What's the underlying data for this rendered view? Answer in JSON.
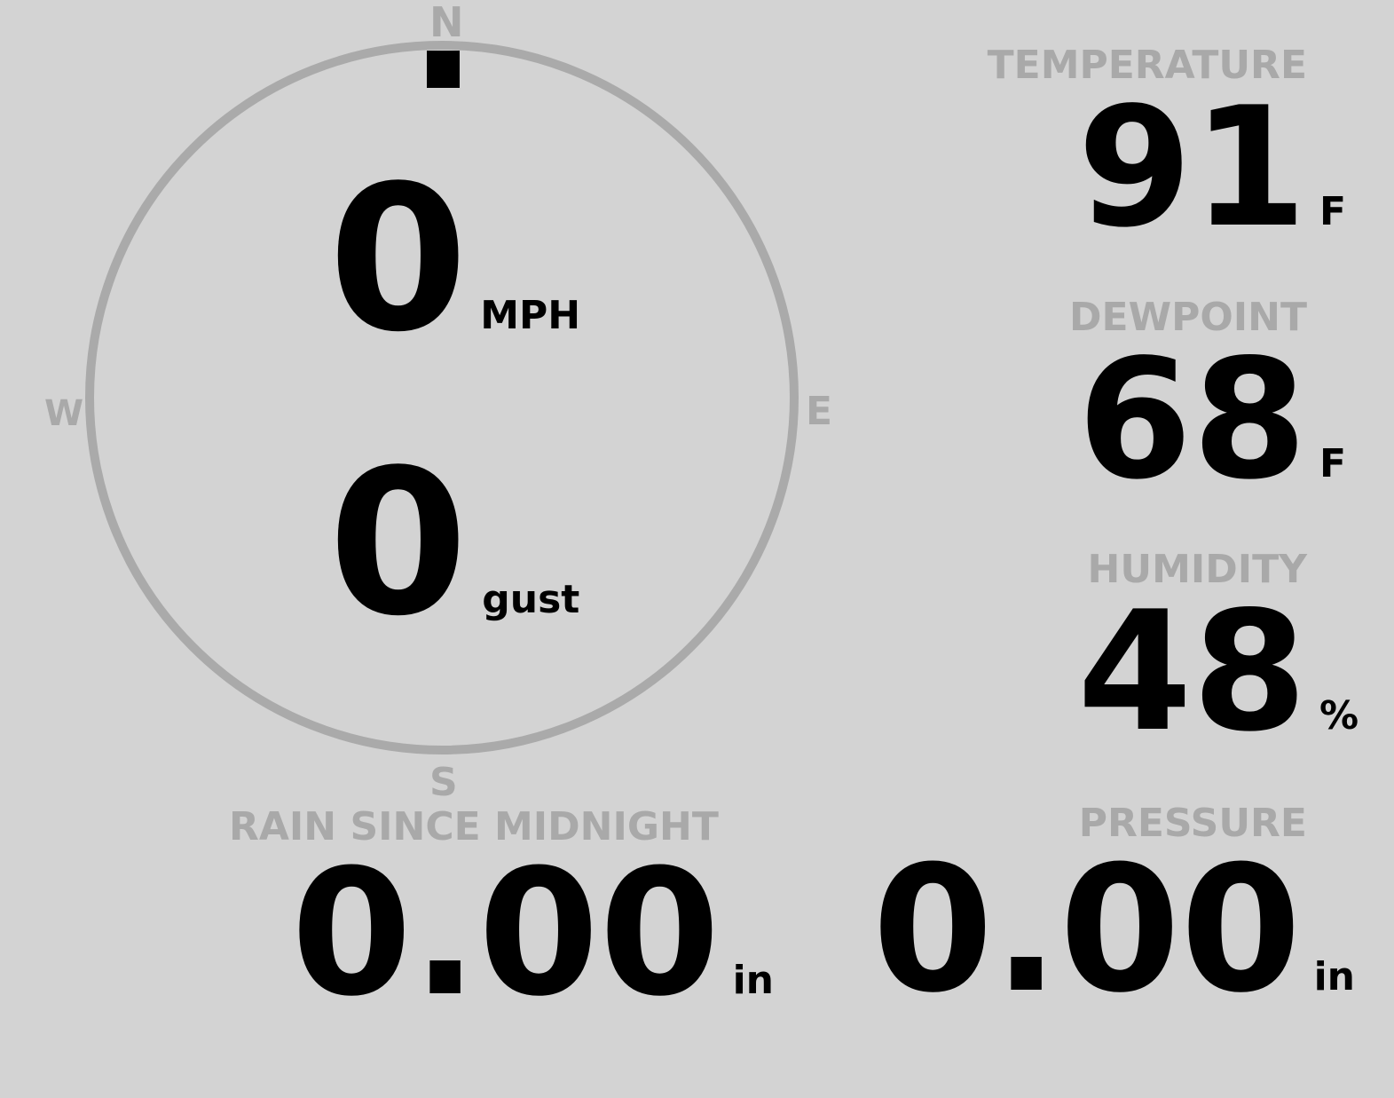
{
  "compass": {
    "north": "N",
    "east": "E",
    "south": "S",
    "west": "W",
    "wind_direction_deg": 0,
    "ring_color": "#aaaaaa",
    "pointer_color": "#000000"
  },
  "wind": {
    "speed": "0",
    "speed_unit": "MPH",
    "gust": "0",
    "gust_unit": "gust"
  },
  "temperature": {
    "label": "TEMPERATURE",
    "value": "91",
    "unit": "F"
  },
  "dewpoint": {
    "label": "DEWPOINT",
    "value": "68",
    "unit": "F"
  },
  "humidity": {
    "label": "HUMIDITY",
    "value": "48",
    "unit": "%"
  },
  "rain": {
    "label": "RAIN SINCE MIDNIGHT",
    "value": "0.00",
    "unit": "in"
  },
  "pressure": {
    "label": "PRESSURE",
    "value": "0.00",
    "unit": "in"
  },
  "colors": {
    "background": "#d3d3d3",
    "label": "#a9a9a9",
    "value": "#000000"
  }
}
